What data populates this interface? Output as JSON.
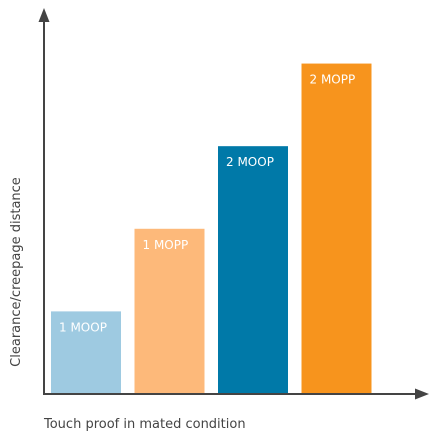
{
  "chart_data": {
    "type": "bar",
    "title": "",
    "xlabel": "Touch proof in mated condition",
    "ylabel": "Clearance/creepage distance",
    "categories": [
      "1 MOOP",
      "1 MOPP",
      "2 MOOP",
      "2 MOPP"
    ],
    "values": [
      1,
      2,
      3,
      4
    ],
    "colors": [
      "#9ecae1",
      "#fdb97a",
      "#0079a8",
      "#f7941d"
    ],
    "ylim": [
      0,
      4.6
    ],
    "grid": false,
    "axis_color": "#444444"
  }
}
